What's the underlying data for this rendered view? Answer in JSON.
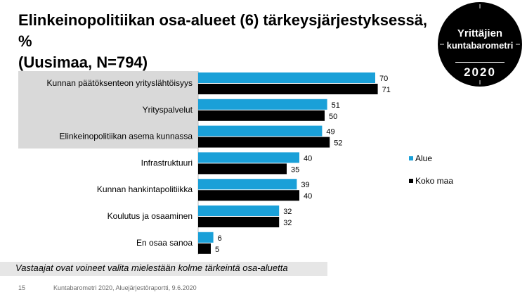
{
  "title": {
    "line1": "Elinkeinopolitiikan osa-alueet (6) tärkeysjärjestyksessä, %",
    "line2": "(Uusimaa, N=794)"
  },
  "badge": {
    "line1": "Yrittäjien",
    "line2": "kuntabarometri",
    "year": "2020"
  },
  "colors": {
    "alue": "#1aa0d8",
    "koko_maa": "#000000",
    "highlight": "#d9d9d9"
  },
  "chart_data": {
    "type": "bar",
    "orientation": "horizontal",
    "categories": [
      "Kunnan päätöksenteon yrityslähtöisyys",
      "Yrityspalvelut",
      "Elinkeinopolitiikan asema kunnassa",
      "Infrastruktuuri",
      "Kunnan hankintapolitiikka",
      "Koulutus ja osaaminen",
      "En osaa sanoa"
    ],
    "series": [
      {
        "name": "Alue",
        "color": "#1aa0d8",
        "values": [
          70,
          51,
          49,
          40,
          39,
          32,
          6
        ]
      },
      {
        "name": "Koko maa",
        "color": "#000000",
        "values": [
          71,
          50,
          52,
          35,
          40,
          32,
          5
        ]
      }
    ],
    "xlim": [
      0,
      100
    ],
    "highlighted_categories": 3,
    "legend_position": "right",
    "grid": false
  },
  "footnote": "Vastaajat ovat voineet valita mielestään kolme tärkeintä osa-aluetta",
  "footer": {
    "page": "15",
    "source": "Kuntabarometri 2020, Aluejärjestöraportti, 9.6.2020"
  }
}
